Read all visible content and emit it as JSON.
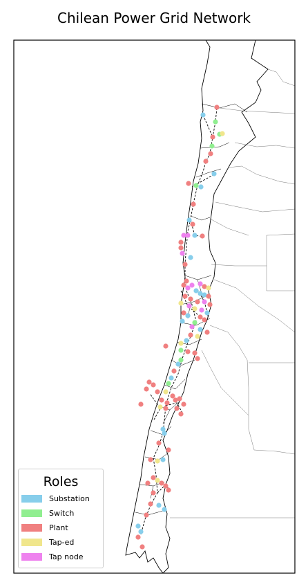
{
  "title": "Chilean Power Grid Network",
  "legend": {
    "title": "Roles",
    "items": [
      {
        "key": "substation",
        "label": "Substation",
        "color": "#87CEEB"
      },
      {
        "key": "switch",
        "label": "Switch",
        "color": "#90EE90"
      },
      {
        "key": "plant",
        "label": "Plant",
        "color": "#F08080"
      },
      {
        "key": "taped",
        "label": "Tap-ed",
        "color": "#F0E68C"
      },
      {
        "key": "tapnode",
        "label": "Tap node",
        "color": "#EE82EE"
      }
    ]
  },
  "colors": {
    "substation": "#87CEEB",
    "switch": "#90EE90",
    "plant": "#F08080",
    "taped": "#F0E68C",
    "tapnode": "#EE82EE",
    "boundary": "#000000",
    "line": "#000000"
  }
}
